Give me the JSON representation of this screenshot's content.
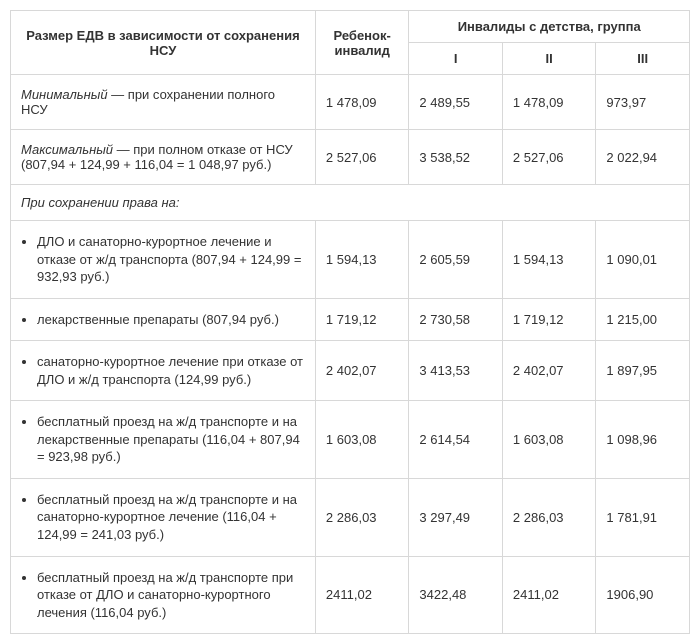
{
  "header": {
    "main": "Размер ЕДВ в зависимости от сохранения НСУ",
    "child": "Ребенок-инвалид",
    "group_title": "Инвалиды с детства, группа",
    "g1": "I",
    "g2": "II",
    "g3": "III"
  },
  "rows": [
    {
      "desc": "Минимальный — при сохранении полного НСУ",
      "italic_lead": true,
      "v": [
        "1 478,09",
        "2 489,55",
        "1 478,09",
        "973,97"
      ]
    },
    {
      "desc": "Максимальный — при полном отказе от НСУ (807,94 + 124,99 + 116,04 = 1 048,97 руб.)",
      "italic_lead": true,
      "v": [
        "2 527,06",
        "3 538,52",
        "2 527,06",
        "2 022,94"
      ]
    }
  ],
  "section_label": "При сохранении права на:",
  "bullet_rows": [
    {
      "desc": "ДЛО и санаторно-курортное лечение и отказе от ж/д транспорта (807,94 + 124,99 = 932,93 руб.)",
      "v": [
        "1 594,13",
        "2 605,59",
        "1 594,13",
        "1 090,01"
      ]
    },
    {
      "desc": "лекарственные препараты (807,94 руб.)",
      "v": [
        "1 719,12",
        "2 730,58",
        "1 719,12",
        "1 215,00"
      ]
    },
    {
      "desc": "санаторно-курортное лечение при отказе от ДЛО и ж/д транспорта (124,99 руб.)",
      "v": [
        "2 402,07",
        "3 413,53",
        "2 402,07",
        "1 897,95"
      ]
    },
    {
      "desc": "бесплатный проезд на ж/д транспорте и на лекарственные препараты (116,04 + 807,94 = 923,98 руб.)",
      "v": [
        "1 603,08",
        "2 614,54",
        "1 603,08",
        "1 098,96"
      ]
    },
    {
      "desc": "бесплатный проезд на ж/д транспорте и на санаторно-курортное лечение (116,04 + 124,99 = 241,03 руб.)",
      "v": [
        "2 286,03",
        "3 297,49",
        "2 286,03",
        "1 781,91"
      ]
    },
    {
      "desc": "бесплатный проезд на ж/д транспорте при отказе от ДЛО и санаторно-курортного лечения (116,04 руб.)",
      "v": [
        "2411,02",
        "3422,48",
        "2411,02",
        "1906,90"
      ]
    }
  ]
}
